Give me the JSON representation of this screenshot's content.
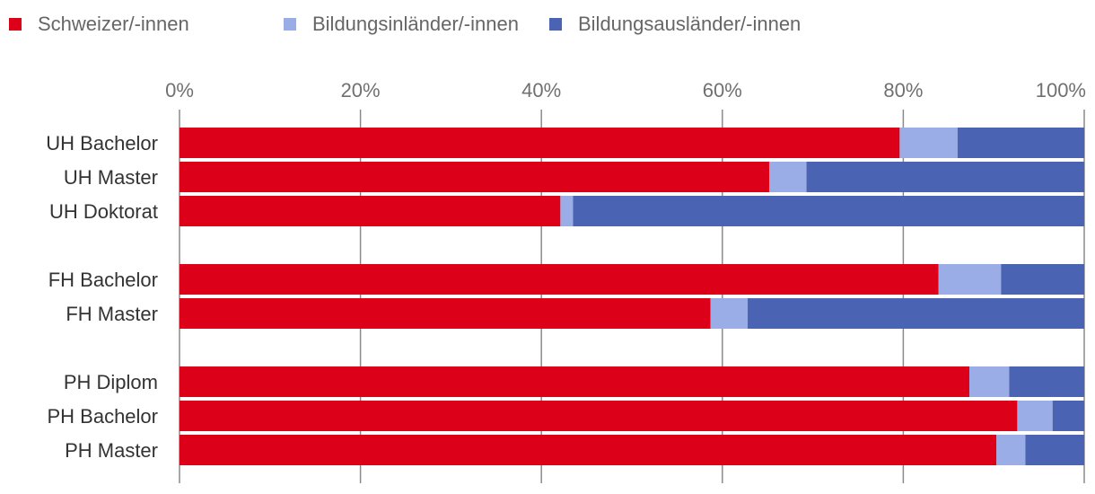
{
  "chart_data": {
    "type": "bar",
    "orientation": "horizontal",
    "stacked": true,
    "normalized": true,
    "title": "",
    "xlabel": "",
    "ylabel": "",
    "xlim": [
      0,
      100
    ],
    "x_ticks": [
      "0%",
      "20%",
      "40%",
      "60%",
      "80%",
      "100%"
    ],
    "x_tick_values": [
      0,
      20,
      40,
      60,
      80,
      100
    ],
    "grid": true,
    "legend_position": "top-left",
    "groups": [
      [
        "UH Bachelor",
        "UH Master",
        "UH Doktorat"
      ],
      [
        "FH Bachelor",
        "FH Master"
      ],
      [
        "PH Diplom",
        "PH Bachelor",
        "PH Master"
      ]
    ],
    "categories": [
      "UH Bachelor",
      "UH Master",
      "UH Doktorat",
      "FH Bachelor",
      "FH Master",
      "PH Diplom",
      "PH Bachelor",
      "PH Master"
    ],
    "series": [
      {
        "name": "Schweizer/-innen",
        "color": "#dc0018",
        "values": [
          79.6,
          65.2,
          42.1,
          83.9,
          58.7,
          87.3,
          92.6,
          90.3
        ]
      },
      {
        "name": "Bildungsinländer/-innen",
        "color": "#9aade6",
        "values": [
          6.4,
          4.1,
          1.4,
          6.9,
          4.1,
          4.4,
          3.9,
          3.2
        ]
      },
      {
        "name": "Bildungsausländer/-innen",
        "color": "#4b63b3",
        "values": [
          14.0,
          30.7,
          56.5,
          9.2,
          37.2,
          8.3,
          3.5,
          6.5
        ]
      }
    ]
  }
}
